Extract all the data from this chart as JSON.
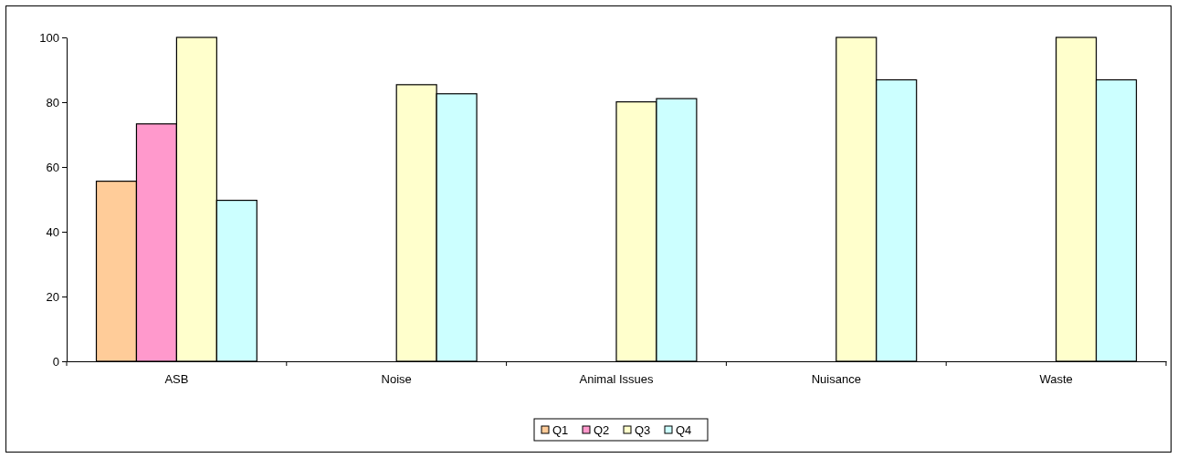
{
  "chart_data": {
    "type": "bar",
    "categories": [
      "ASB",
      "Noise",
      "Animal Issues",
      "Nuisance",
      "Waste"
    ],
    "series": [
      {
        "name": "Q1",
        "color": "#ffcc99",
        "values": [
          55.6,
          null,
          null,
          null,
          null
        ]
      },
      {
        "name": "Q2",
        "color": "#ff99cc",
        "values": [
          73.3,
          null,
          null,
          null,
          null
        ]
      },
      {
        "name": "Q3",
        "color": "#ffffcc",
        "values": [
          100,
          85.4,
          80.1,
          100,
          100
        ]
      },
      {
        "name": "Q4",
        "color": "#ccffff",
        "values": [
          49.7,
          82.6,
          81.1,
          86.9,
          86.9
        ]
      }
    ],
    "ylim": [
      0,
      100
    ],
    "yticks": [
      0,
      20,
      40,
      60,
      80,
      100
    ],
    "grid": false,
    "legend": "bottom"
  }
}
